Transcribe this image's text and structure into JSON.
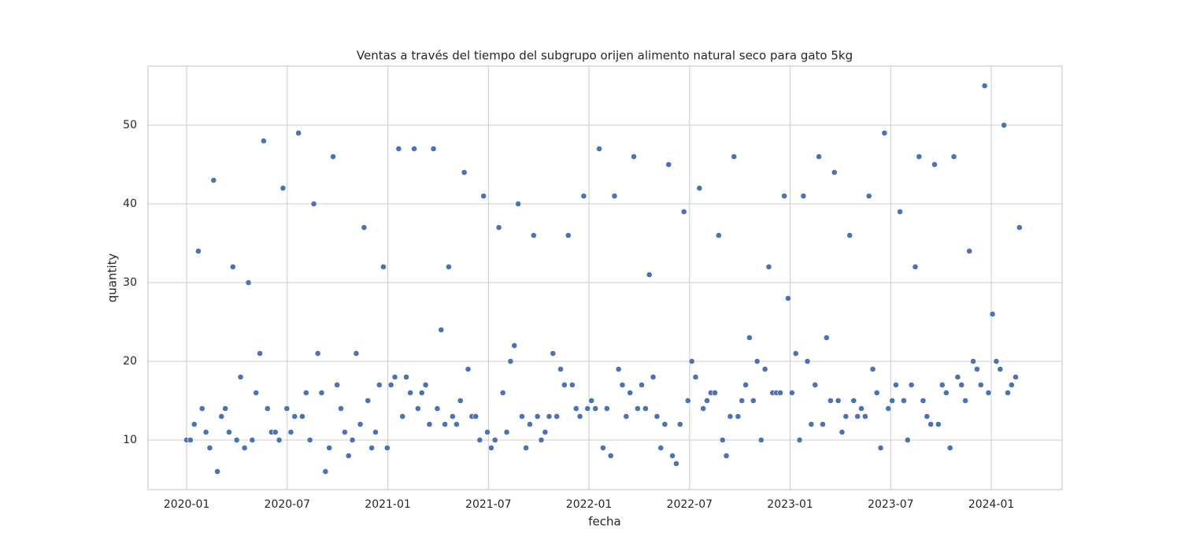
{
  "chart_data": {
    "type": "scatter",
    "title": "Ventas a través del tiempo del subgrupo orijen alimento natural seco para gato 5kg",
    "x_label": "fecha",
    "y_label": "quantity",
    "x": [
      2020.0,
      2020.019,
      2020.038,
      2020.058,
      2020.077,
      2020.096,
      2020.115,
      2020.134,
      2020.153,
      2020.173,
      2020.192,
      2020.211,
      2020.23,
      2020.249,
      2020.268,
      2020.288,
      2020.307,
      2020.326,
      2020.345,
      2020.364,
      2020.383,
      2020.402,
      2020.422,
      2020.441,
      2020.46,
      2020.479,
      2020.498,
      2020.518,
      2020.537,
      2020.556,
      2020.575,
      2020.594,
      2020.613,
      2020.632,
      2020.652,
      2020.671,
      2020.69,
      2020.709,
      2020.728,
      2020.748,
      2020.767,
      2020.786,
      2020.805,
      2020.824,
      2020.843,
      2020.863,
      2020.882,
      2020.901,
      2020.92,
      2020.939,
      2020.958,
      2020.978,
      2020.997,
      2021.016,
      2021.035,
      2021.054,
      2021.073,
      2021.092,
      2021.112,
      2021.131,
      2021.15,
      2021.169,
      2021.188,
      2021.207,
      2021.227,
      2021.246,
      2021.265,
      2021.284,
      2021.303,
      2021.322,
      2021.342,
      2021.361,
      2021.38,
      2021.399,
      2021.418,
      2021.437,
      2021.457,
      2021.476,
      2021.495,
      2021.514,
      2021.533,
      2021.552,
      2021.572,
      2021.591,
      2021.61,
      2021.629,
      2021.648,
      2021.667,
      2021.687,
      2021.706,
      2021.725,
      2021.744,
      2021.763,
      2021.782,
      2021.802,
      2021.821,
      2021.84,
      2021.859,
      2021.878,
      2021.897,
      2021.917,
      2021.936,
      2021.955,
      2021.974,
      2021.993,
      2022.012,
      2022.032,
      2022.051,
      2022.07,
      2022.089,
      2022.108,
      2022.127,
      2022.147,
      2022.166,
      2022.185,
      2022.204,
      2022.223,
      2022.242,
      2022.262,
      2022.281,
      2022.3,
      2022.319,
      2022.338,
      2022.357,
      2022.377,
      2022.396,
      2022.415,
      2022.434,
      2022.453,
      2022.472,
      2022.492,
      2022.511,
      2022.53,
      2022.549,
      2022.568,
      2022.587,
      2022.606,
      2022.626,
      2022.645,
      2022.664,
      2022.683,
      2022.702,
      2022.721,
      2022.741,
      2022.76,
      2022.779,
      2022.798,
      2022.817,
      2022.836,
      2022.856,
      2022.875,
      2022.894,
      2022.913,
      2022.932,
      2022.951,
      2022.971,
      2022.99,
      2023.009,
      2023.028,
      2023.047,
      2023.066,
      2023.086,
      2023.105,
      2023.124,
      2023.143,
      2023.162,
      2023.181,
      2023.201,
      2023.22,
      2023.239,
      2023.258,
      2023.277,
      2023.296,
      2023.316,
      2023.335,
      2023.354,
      2023.373,
      2023.392,
      2023.411,
      2023.431,
      2023.45,
      2023.469,
      2023.488,
      2023.507,
      2023.526,
      2023.546,
      2023.565,
      2023.584,
      2023.603,
      2023.622,
      2023.641,
      2023.661,
      2023.68,
      2023.699,
      2023.718,
      2023.737,
      2023.756,
      2023.776,
      2023.795,
      2023.814,
      2023.833,
      2023.852,
      2023.871,
      2023.891,
      2023.91,
      2023.929,
      2023.948,
      2023.967,
      2023.986,
      2024.006,
      2024.025,
      2024.044,
      2024.063,
      2024.082,
      2024.101,
      2024.121,
      2024.14
    ],
    "series": [
      {
        "name": "quantity",
        "color": "#4c72b0",
        "values": [
          10,
          10,
          12,
          34,
          14,
          11,
          9,
          43,
          6,
          13,
          14,
          11,
          32,
          10,
          18,
          9,
          30,
          10,
          16,
          21,
          48,
          14,
          11,
          11,
          10,
          42,
          14,
          11,
          13,
          49,
          13,
          16,
          10,
          40,
          21,
          16,
          6,
          9,
          46,
          17,
          14,
          11,
          8,
          10,
          21,
          12,
          37,
          15,
          9,
          11,
          17,
          32,
          9,
          17,
          18,
          47,
          13,
          18,
          16,
          47,
          14,
          16,
          17,
          12,
          47,
          14,
          24,
          12,
          32,
          13,
          12,
          15,
          44,
          19,
          13,
          13,
          10,
          41,
          11,
          9,
          10,
          37,
          16,
          11,
          20,
          22,
          40,
          13,
          9,
          12,
          36,
          13,
          10,
          11,
          13,
          21,
          13,
          19,
          17,
          36,
          17,
          14,
          13,
          41,
          14,
          15,
          14,
          47,
          9,
          14,
          8,
          41,
          19,
          17,
          13,
          16,
          46,
          14,
          17,
          14,
          31,
          18,
          13,
          9,
          12,
          45,
          8,
          7,
          12,
          39,
          15,
          20,
          18,
          42,
          14,
          15,
          16,
          16,
          36,
          10,
          8,
          13,
          46,
          13,
          15,
          17,
          23,
          15,
          20,
          10,
          19,
          32,
          16,
          16,
          16,
          41,
          28,
          16,
          21,
          10,
          41,
          20,
          12,
          17,
          46,
          12,
          23,
          15,
          44,
          15,
          11,
          13,
          36,
          15,
          13,
          14,
          13,
          41,
          19,
          16,
          9,
          49,
          14,
          15,
          17,
          39,
          15,
          10,
          17,
          32,
          46,
          15,
          13,
          12,
          45,
          12,
          17,
          16,
          9,
          46,
          18,
          17,
          15,
          34,
          20,
          19,
          17,
          55,
          16,
          26,
          20,
          19,
          50,
          16,
          17,
          18,
          37
        ]
      }
    ],
    "xlim": [
      2019.808,
      2024.352
    ],
    "xticks": [
      {
        "value": 2020.0,
        "label": "2020-01"
      },
      {
        "value": 2020.5,
        "label": "2020-07"
      },
      {
        "value": 2021.0,
        "label": "2021-01"
      },
      {
        "value": 2021.5,
        "label": "2021-07"
      },
      {
        "value": 2022.0,
        "label": "2022-01"
      },
      {
        "value": 2022.5,
        "label": "2022-07"
      },
      {
        "value": 2023.0,
        "label": "2023-01"
      },
      {
        "value": 2023.5,
        "label": "2023-07"
      },
      {
        "value": 2024.0,
        "label": "2024-01"
      }
    ],
    "ylim": [
      3.7,
      57.5
    ],
    "yticks": [
      10,
      20,
      30,
      40,
      50
    ],
    "grid": true
  }
}
